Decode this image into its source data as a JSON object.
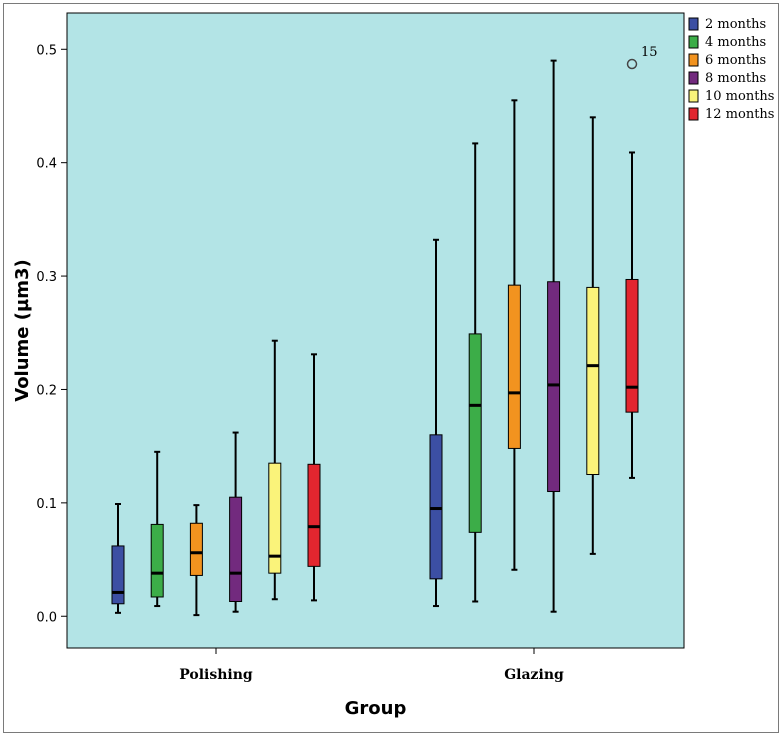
{
  "chart_data": {
    "type": "boxplot",
    "title": "",
    "xlabel": "Group",
    "ylabel": "Volume (µm3)",
    "ylim": [
      -0.028,
      0.532
    ],
    "yticks": [
      "0.0",
      "0.1",
      "0.2",
      "0.3",
      "0.4",
      "0.5"
    ],
    "ytick_values": [
      0.0,
      0.1,
      0.2,
      0.3,
      0.4,
      0.5
    ],
    "categories": [
      "Polishing",
      "Glazing"
    ],
    "legend_position": "top-right",
    "grid": false,
    "background_color": "#b3e4e6",
    "series": [
      {
        "name": "2 months",
        "color": "#3c4fa3",
        "boxes": [
          {
            "min": 0.003,
            "q1": 0.011,
            "median": 0.021,
            "q3": 0.062,
            "max": 0.099
          },
          {
            "min": 0.009,
            "q1": 0.033,
            "median": 0.095,
            "q3": 0.16,
            "max": 0.332
          }
        ]
      },
      {
        "name": "4 months",
        "color": "#3cad48",
        "boxes": [
          {
            "min": 0.009,
            "q1": 0.017,
            "median": 0.038,
            "q3": 0.081,
            "max": 0.145
          },
          {
            "min": 0.013,
            "q1": 0.074,
            "median": 0.186,
            "q3": 0.249,
            "max": 0.417
          }
        ]
      },
      {
        "name": "6 months",
        "color": "#f2931f",
        "boxes": [
          {
            "min": 0.001,
            "q1": 0.036,
            "median": 0.056,
            "q3": 0.082,
            "max": 0.098
          },
          {
            "min": 0.041,
            "q1": 0.148,
            "median": 0.197,
            "q3": 0.292,
            "max": 0.455
          }
        ]
      },
      {
        "name": "8 months",
        "color": "#722a7e",
        "boxes": [
          {
            "min": 0.004,
            "q1": 0.013,
            "median": 0.038,
            "q3": 0.105,
            "max": 0.162
          },
          {
            "min": 0.004,
            "q1": 0.11,
            "median": 0.204,
            "q3": 0.295,
            "max": 0.49
          }
        ]
      },
      {
        "name": "10 months",
        "color": "#faf37a",
        "boxes": [
          {
            "min": 0.015,
            "q1": 0.038,
            "median": 0.053,
            "q3": 0.135,
            "max": 0.243
          },
          {
            "min": 0.055,
            "q1": 0.125,
            "median": 0.221,
            "q3": 0.29,
            "max": 0.44
          }
        ]
      },
      {
        "name": "12 months",
        "color": "#e2262f",
        "boxes": [
          {
            "min": 0.014,
            "q1": 0.044,
            "median": 0.079,
            "q3": 0.134,
            "max": 0.231
          },
          {
            "min": 0.122,
            "q1": 0.18,
            "median": 0.202,
            "q3": 0.297,
            "max": 0.409
          }
        ]
      }
    ],
    "outliers": [
      {
        "category": "Glazing",
        "series": "12 months",
        "value": 0.487,
        "label": "15"
      }
    ]
  }
}
